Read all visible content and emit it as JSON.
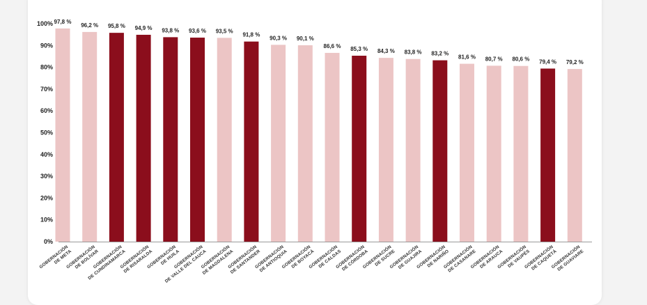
{
  "chart_data": {
    "type": "bar",
    "title": "",
    "xlabel": "",
    "ylabel": "",
    "ylim": [
      0,
      100
    ],
    "grid": false,
    "ytick_labels": [
      "0%",
      "10%",
      "20%",
      "30%",
      "40%",
      "50%",
      "60%",
      "70%",
      "80%",
      "90%",
      "100%"
    ],
    "categories": [
      [
        "GOBERNACIÓN",
        "DE META"
      ],
      [
        "GOBERNACIÓN",
        "DE BOLÍVAR"
      ],
      [
        "GOBERNACIÓN",
        "DE CUNDINAMARCA"
      ],
      [
        "GOBERNACIÓN",
        "DE RISARALDA"
      ],
      [
        "GOBERNACIÓN",
        "DE HUILA"
      ],
      [
        "GOBERNACIÓN",
        "DE VALLE DEL CAUCA"
      ],
      [
        "GOBERNACIÓN",
        "DE MAGDALENA"
      ],
      [
        "GOBERNACIÓN",
        "DE SANTANDER"
      ],
      [
        "GOBERNACIÓN",
        "DE ANTIOQUIA"
      ],
      [
        "GOBERNACIÓN",
        "DE BOYACÁ"
      ],
      [
        "GOBERNACIÓN",
        "DE CALDAS"
      ],
      [
        "GOBERNACIÓN",
        "DE CÓRDOBA"
      ],
      [
        "GOBERNACIÓN",
        "DE SUCRE"
      ],
      [
        "GOBERNACIÓN",
        "DE GUAJIRA"
      ],
      [
        "GOBERNACIÓN",
        "DE NARIÑO"
      ],
      [
        "GOBERNACIÓN",
        "DE CASANARE"
      ],
      [
        "GOBERNACIÓN",
        "DE ARAUCA"
      ],
      [
        "GOBERNACIÓN",
        "DE VAUPÉS"
      ],
      [
        "GOBERNACIÓN",
        "DE CAQUETÁ"
      ],
      [
        "GOBERNACIÓN",
        "DE GUAVIARE"
      ]
    ],
    "values": [
      97.8,
      96.2,
      95.8,
      94.9,
      93.8,
      93.6,
      93.5,
      91.8,
      90.3,
      90.1,
      86.6,
      85.3,
      84.3,
      83.8,
      83.2,
      81.6,
      80.7,
      80.6,
      79.4,
      79.2
    ],
    "value_labels": [
      "97,8 %",
      "96,2 %",
      "95,8 %",
      "94,9 %",
      "93,8 %",
      "93,6 %",
      "93,5 %",
      "91,8 %",
      "90,3 %",
      "90,1 %",
      "86,6 %",
      "85,3 %",
      "84,3 %",
      "83,8 %",
      "83,2 %",
      "81,6 %",
      "80,7 %",
      "80,6 %",
      "79,4 %",
      "79,2 %"
    ],
    "highlighted": [
      false,
      false,
      true,
      true,
      true,
      true,
      false,
      true,
      false,
      false,
      false,
      true,
      false,
      false,
      true,
      false,
      false,
      false,
      true,
      false
    ],
    "colors": {
      "highlight": "#8b0e1c",
      "normal": "#ecc5c5",
      "axis": "#999999",
      "text": "#222222"
    }
  }
}
